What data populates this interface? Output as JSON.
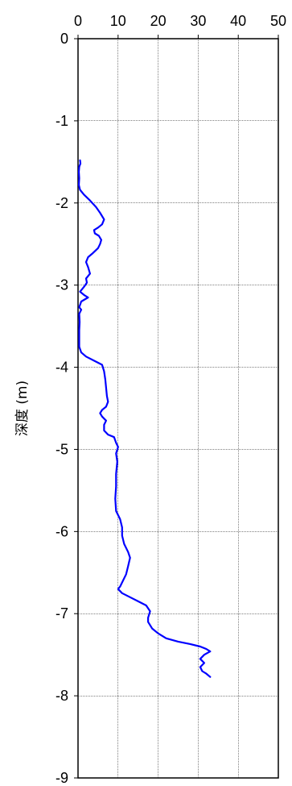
{
  "chart_data": {
    "type": "line",
    "title": "",
    "xlabel": "",
    "ylabel": "深度 (m)",
    "x_axis_position": "top",
    "xlim": [
      0,
      50
    ],
    "ylim": [
      -9,
      0
    ],
    "x_ticks": [
      "0",
      "10",
      "20",
      "30",
      "40",
      "50"
    ],
    "y_ticks": [
      "0",
      "-1",
      "-2",
      "-3",
      "-4",
      "-5",
      "-6",
      "-7",
      "-8",
      "-9"
    ],
    "grid": true,
    "legend": "none",
    "series": [
      {
        "color": "#0000ff",
        "points": [
          [
            0.5,
            -1.48
          ],
          [
            0.6,
            -1.52
          ],
          [
            0.3,
            -1.56
          ],
          [
            0.2,
            -1.62
          ],
          [
            0.3,
            -1.7
          ],
          [
            0.2,
            -1.78
          ],
          [
            0.5,
            -1.84
          ],
          [
            1.5,
            -1.9
          ],
          [
            3,
            -1.97
          ],
          [
            4.5,
            -2.05
          ],
          [
            5.5,
            -2.12
          ],
          [
            6.5,
            -2.2
          ],
          [
            6,
            -2.26
          ],
          [
            5,
            -2.3
          ],
          [
            4,
            -2.33
          ],
          [
            4.2,
            -2.37
          ],
          [
            5.2,
            -2.4
          ],
          [
            5.8,
            -2.45
          ],
          [
            5.5,
            -2.5
          ],
          [
            5,
            -2.55
          ],
          [
            3.5,
            -2.62
          ],
          [
            2.5,
            -2.66
          ],
          [
            2,
            -2.72
          ],
          [
            2.5,
            -2.78
          ],
          [
            3,
            -2.86
          ],
          [
            2,
            -2.92
          ],
          [
            2.2,
            -2.97
          ],
          [
            1.5,
            -3.02
          ],
          [
            0.5,
            -3.08
          ],
          [
            1.5,
            -3.12
          ],
          [
            2.5,
            -3.15
          ],
          [
            0.8,
            -3.2
          ],
          [
            0.3,
            -3.27
          ],
          [
            0.8,
            -3.3
          ],
          [
            0.3,
            -3.35
          ],
          [
            0.4,
            -3.45
          ],
          [
            0.3,
            -3.55
          ],
          [
            0.3,
            -3.65
          ],
          [
            0.3,
            -3.75
          ],
          [
            0.8,
            -3.82
          ],
          [
            2,
            -3.87
          ],
          [
            4,
            -3.92
          ],
          [
            6,
            -3.97
          ],
          [
            6.5,
            -4.05
          ],
          [
            6.8,
            -4.15
          ],
          [
            7,
            -4.25
          ],
          [
            7.2,
            -4.35
          ],
          [
            7.5,
            -4.42
          ],
          [
            7,
            -4.48
          ],
          [
            6,
            -4.52
          ],
          [
            5.5,
            -4.56
          ],
          [
            6,
            -4.6
          ],
          [
            7,
            -4.65
          ],
          [
            6.5,
            -4.7
          ],
          [
            6.5,
            -4.77
          ],
          [
            7.5,
            -4.82
          ],
          [
            9,
            -4.85
          ],
          [
            9.5,
            -4.92
          ],
          [
            10,
            -4.97
          ],
          [
            9.5,
            -5.05
          ],
          [
            9.8,
            -5.15
          ],
          [
            9.5,
            -5.3
          ],
          [
            9.5,
            -5.45
          ],
          [
            9.3,
            -5.6
          ],
          [
            9.5,
            -5.75
          ],
          [
            10.5,
            -5.85
          ],
          [
            11,
            -5.95
          ],
          [
            11,
            -6.05
          ],
          [
            11.5,
            -6.15
          ],
          [
            12.5,
            -6.25
          ],
          [
            13,
            -6.32
          ],
          [
            12.5,
            -6.42
          ],
          [
            12,
            -6.52
          ],
          [
            11,
            -6.62
          ],
          [
            10.5,
            -6.67
          ],
          [
            10,
            -6.7
          ],
          [
            11,
            -6.75
          ],
          [
            13,
            -6.8
          ],
          [
            15,
            -6.85
          ],
          [
            17,
            -6.9
          ],
          [
            18,
            -6.97
          ],
          [
            17.5,
            -7.05
          ],
          [
            17.5,
            -7.1
          ],
          [
            18.5,
            -7.18
          ],
          [
            20,
            -7.24
          ],
          [
            22,
            -7.3
          ],
          [
            25,
            -7.34
          ],
          [
            28,
            -7.37
          ],
          [
            30.5,
            -7.4
          ],
          [
            32,
            -7.43
          ],
          [
            33,
            -7.46
          ],
          [
            31.5,
            -7.5
          ],
          [
            30.5,
            -7.55
          ],
          [
            31.5,
            -7.6
          ],
          [
            30.5,
            -7.65
          ],
          [
            31,
            -7.7
          ],
          [
            32,
            -7.73
          ],
          [
            33,
            -7.77
          ]
        ]
      }
    ]
  }
}
